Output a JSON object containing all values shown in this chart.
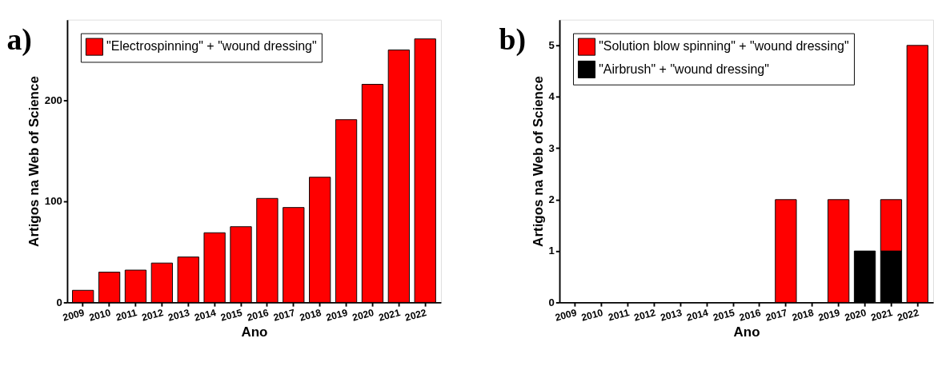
{
  "chart_data": [
    {
      "type": "bar",
      "annotations": [
        "a)"
      ],
      "xlabel": "Ano",
      "ylabel": "Artigos na Web of Science",
      "categories": [
        "2009",
        "2010",
        "2011",
        "2012",
        "2013",
        "2014",
        "2015",
        "2016",
        "2017",
        "2018",
        "2019",
        "2020",
        "2021",
        "2022"
      ],
      "series": [
        {
          "name": "\"Electrospinning\" + \"wound dressing\"",
          "color": "#ff0000",
          "values": [
            12,
            30,
            32,
            39,
            45,
            69,
            75,
            103,
            94,
            124,
            181,
            216,
            250,
            261
          ]
        }
      ],
      "ylim": [
        0,
        280
      ],
      "yticks": [
        0,
        100,
        200
      ],
      "grid": false,
      "legend": "top left"
    },
    {
      "type": "bar",
      "annotations": [
        "b)"
      ],
      "xlabel": "Ano",
      "ylabel": "Artigos na Web of Science",
      "stacked": true,
      "categories": [
        "2009",
        "2010",
        "2011",
        "2012",
        "2013",
        "2014",
        "2015",
        "2016",
        "2017",
        "2018",
        "2019",
        "2020",
        "2021",
        "2022"
      ],
      "series": [
        {
          "name": "\"Airbrush\" + \"wound dressing\"",
          "color": "#000000",
          "values": [
            null,
            null,
            null,
            null,
            null,
            null,
            null,
            null,
            null,
            null,
            null,
            1,
            1,
            null
          ]
        },
        {
          "name": "\"Solution blow spinning\" + \"wound dressing\"",
          "color": "#ff0000",
          "values": [
            null,
            null,
            null,
            null,
            null,
            null,
            null,
            null,
            2,
            null,
            2,
            null,
            1,
            5
          ]
        }
      ],
      "ylim": [
        0,
        5.5
      ],
      "yticks": [
        0,
        1,
        2,
        3,
        4,
        5
      ],
      "grid": false,
      "legend": "top left"
    }
  ]
}
